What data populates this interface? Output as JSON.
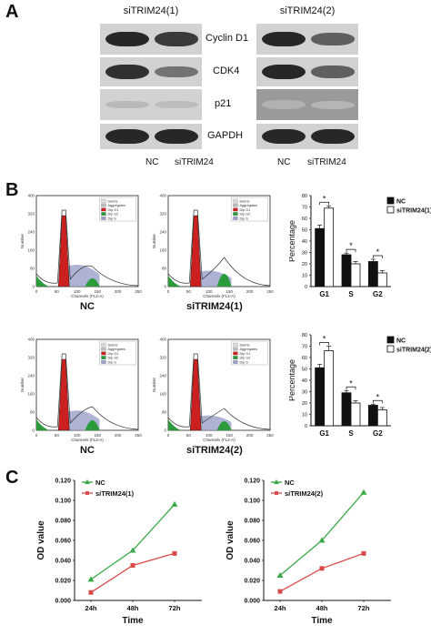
{
  "panels": {
    "a": "A",
    "b": "B",
    "c": "C"
  },
  "western": {
    "group1_title": "siTRIM24(1)",
    "group2_title": "siTRIM24(2)",
    "proteins": [
      "Cyclin D1",
      "CDK4",
      "p21",
      "GAPDH"
    ],
    "lane_labels": [
      "NC",
      "siTRIM24"
    ],
    "band_intensity": {
      "group1": [
        [
          0.85,
          0.75
        ],
        [
          0.8,
          0.45
        ],
        [
          0.08,
          0.06
        ],
        [
          0.85,
          0.85
        ]
      ],
      "group2": [
        [
          0.85,
          0.55
        ],
        [
          0.85,
          0.55
        ],
        [
          0.12,
          0.1
        ],
        [
          0.85,
          0.85
        ]
      ]
    }
  },
  "flow": {
    "legend_items": [
      "Debris",
      "Aggregates",
      "Dip G1",
      "Dip G2",
      "Dip S"
    ],
    "axis_x": "Channels (FL2-A)",
    "axis_y": "Number",
    "x_ticks": [
      "0",
      "50",
      "100",
      "150",
      "200",
      "250"
    ],
    "y_ticks_row1": [
      "0",
      "80",
      "160",
      "240",
      "320",
      "400"
    ],
    "y_ticks_row2": [
      "0",
      "80",
      "160",
      "240",
      "320",
      "400"
    ],
    "labels_row1": [
      "NC",
      "siTRIM24(1)"
    ],
    "labels_row2": [
      "NC",
      "siTRIM24(2)"
    ],
    "colors": {
      "g1": "#cc1f1f",
      "g2": "#2a9a3a",
      "s": "#9aa0c8"
    }
  },
  "chart_data": [
    {
      "type": "bar",
      "ylabel": "Percentage",
      "categories": [
        "G1",
        "S",
        "G2"
      ],
      "ylim": [
        0,
        80
      ],
      "yticks": [
        "0",
        "10",
        "20",
        "30",
        "40",
        "50",
        "60",
        "70",
        "80"
      ],
      "series": [
        {
          "name": "NC",
          "values": [
            51,
            28,
            22
          ],
          "errors": [
            3,
            1.5,
            2
          ],
          "color": "#111111"
        },
        {
          "name": "siTRIM24(1)",
          "values": [
            69,
            20,
            12
          ],
          "errors": [
            2,
            2,
            2
          ],
          "color": "#ffffff"
        }
      ],
      "significance": [
        "*",
        "*",
        "*"
      ],
      "legend": "top-right"
    },
    {
      "type": "bar",
      "ylabel": "Percentage",
      "categories": [
        "G1",
        "S",
        "G2"
      ],
      "ylim": [
        0,
        80
      ],
      "yticks": [
        "0",
        "10",
        "20",
        "30",
        "40",
        "50",
        "60",
        "70",
        "80"
      ],
      "series": [
        {
          "name": "NC",
          "values": [
            51,
            29,
            18
          ],
          "errors": [
            3,
            2,
            1
          ],
          "color": "#111111"
        },
        {
          "name": "siTRIM24(2)",
          "values": [
            66,
            20,
            14
          ],
          "errors": [
            4,
            2,
            2
          ],
          "color": "#ffffff"
        }
      ],
      "significance": [
        "*",
        "*",
        "*"
      ],
      "legend": "top-right"
    },
    {
      "type": "line",
      "xlabel": "Time",
      "ylabel": "OD value",
      "x": [
        "24h",
        "48h",
        "72h"
      ],
      "ylim": [
        0,
        0.12
      ],
      "yticks": [
        "0.000",
        "0.020",
        "0.040",
        "0.060",
        "0.080",
        "0.100",
        "0.120"
      ],
      "series": [
        {
          "name": "NC",
          "values": [
            0.021,
            0.05,
            0.096
          ],
          "color": "#3aa848",
          "marker": "triangle"
        },
        {
          "name": "siTRIM24(1)",
          "values": [
            0.008,
            0.035,
            0.047
          ],
          "color": "#d94b4b",
          "marker": "square"
        }
      ],
      "legend": "top-left"
    },
    {
      "type": "line",
      "xlabel": "Time",
      "ylabel": "OD value",
      "x": [
        "24h",
        "48h",
        "72h"
      ],
      "ylim": [
        0,
        0.12
      ],
      "yticks": [
        "0.000",
        "0.020",
        "0.040",
        "0.060",
        "0.080",
        "0.100",
        "0.120"
      ],
      "series": [
        {
          "name": "NC",
          "values": [
            0.025,
            0.06,
            0.108
          ],
          "color": "#3aa848",
          "marker": "triangle"
        },
        {
          "name": "siTRIM24(2)",
          "values": [
            0.009,
            0.032,
            0.047
          ],
          "color": "#d94b4b",
          "marker": "square"
        }
      ],
      "legend": "top-left"
    }
  ]
}
